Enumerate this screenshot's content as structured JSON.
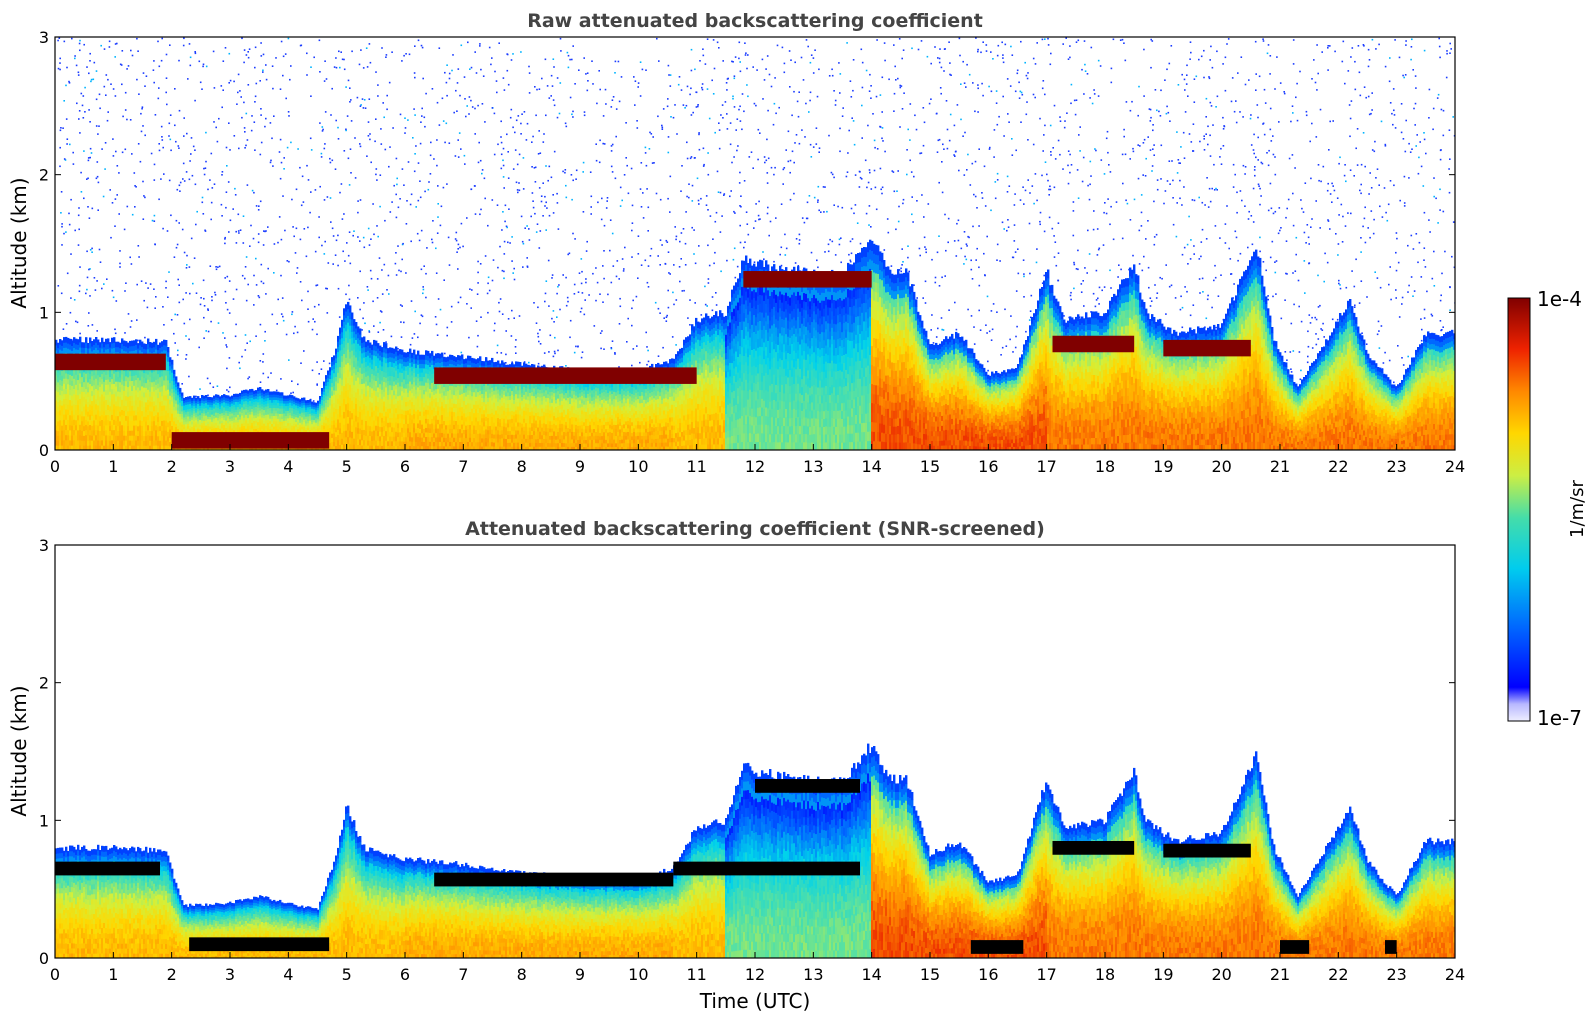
{
  "colors": {
    "text_title": "#444444",
    "noise_blue": "#1b3cff",
    "dark_red": "#800000",
    "black_screened": "#000000"
  },
  "colorbar": {
    "min_label": "1e-7",
    "max_label": "1e-4",
    "label": "1/m/sr",
    "colormap": "jet-like (white at low end, dark red at high end)"
  },
  "chart_data": [
    {
      "type": "heatmap",
      "title": "Raw attenuated backscattering coefficient",
      "xlabel": "",
      "ylabel": "Altitude (km)",
      "xlim": [
        0,
        24
      ],
      "ylim": [
        0,
        3
      ],
      "x_ticks": [
        "0",
        "1",
        "2",
        "3",
        "4",
        "5",
        "6",
        "7",
        "8",
        "9",
        "10",
        "11",
        "12",
        "13",
        "14",
        "15",
        "16",
        "17",
        "18",
        "19",
        "20",
        "21",
        "22",
        "23",
        "24"
      ],
      "y_ticks": [
        "0",
        "1",
        "2",
        "3"
      ],
      "boundary_layer_top_km": [
        [
          0,
          0.8
        ],
        [
          1,
          0.8
        ],
        [
          1.9,
          0.78
        ],
        [
          2.2,
          0.38
        ],
        [
          3,
          0.4
        ],
        [
          3.5,
          0.45
        ],
        [
          4.5,
          0.35
        ],
        [
          4.8,
          0.72
        ],
        [
          5,
          1.1
        ],
        [
          5.3,
          0.8
        ],
        [
          6,
          0.72
        ],
        [
          7,
          0.68
        ],
        [
          8,
          0.62
        ],
        [
          9,
          0.58
        ],
        [
          10,
          0.58
        ],
        [
          10.6,
          0.65
        ],
        [
          11,
          0.95
        ],
        [
          11.5,
          1.0
        ],
        [
          11.8,
          1.4
        ],
        [
          12,
          1.35
        ],
        [
          12.5,
          1.32
        ],
        [
          13,
          1.28
        ],
        [
          13.5,
          1.28
        ],
        [
          14,
          1.55
        ],
        [
          14.3,
          1.3
        ],
        [
          14.6,
          1.3
        ],
        [
          15,
          0.75
        ],
        [
          15.5,
          0.85
        ],
        [
          16,
          0.55
        ],
        [
          16.5,
          0.6
        ],
        [
          17,
          1.3
        ],
        [
          17.3,
          0.95
        ],
        [
          18,
          1.0
        ],
        [
          18.5,
          1.35
        ],
        [
          18.7,
          1.0
        ],
        [
          19.2,
          0.85
        ],
        [
          20,
          0.9
        ],
        [
          20.6,
          1.5
        ],
        [
          20.9,
          0.8
        ],
        [
          21.3,
          0.45
        ],
        [
          21.8,
          0.8
        ],
        [
          22.2,
          1.1
        ],
        [
          22.5,
          0.7
        ],
        [
          23,
          0.45
        ],
        [
          23.5,
          0.85
        ],
        [
          24,
          0.85
        ]
      ],
      "aerosol_layer_km": [
        {
          "start": 0.0,
          "end": 1.9,
          "altitude": 0.65,
          "value": "1e-4"
        },
        {
          "start": 2.0,
          "end": 4.7,
          "altitude": 0.08,
          "value": "1e-4"
        },
        {
          "start": 6.5,
          "end": 11.0,
          "altitude": 0.55,
          "value": "1e-4"
        },
        {
          "start": 11.8,
          "end": 14.0,
          "altitude": 1.25,
          "value": "1e-4"
        },
        {
          "start": 17.1,
          "end": 18.5,
          "altitude": 0.78,
          "value": "1e-4"
        },
        {
          "start": 19.0,
          "end": 20.5,
          "altitude": 0.75,
          "value": "1e-4"
        }
      ]
    },
    {
      "type": "heatmap",
      "title": "Attenuated backscattering coefficient (SNR-screened)",
      "xlabel": "Time (UTC)",
      "ylabel": "Altitude (km)",
      "xlim": [
        0,
        24
      ],
      "ylim": [
        0,
        3
      ],
      "x_ticks": [
        "0",
        "1",
        "2",
        "3",
        "4",
        "5",
        "6",
        "7",
        "8",
        "9",
        "10",
        "11",
        "12",
        "13",
        "14",
        "15",
        "16",
        "17",
        "18",
        "19",
        "20",
        "21",
        "22",
        "23",
        "24"
      ],
      "y_ticks": [
        "0",
        "1",
        "2",
        "3"
      ],
      "screened_saturation_segments": [
        {
          "start": 0.0,
          "end": 1.8,
          "altitude": 0.65
        },
        {
          "start": 2.3,
          "end": 4.7,
          "altitude": 0.1
        },
        {
          "start": 6.5,
          "end": 10.6,
          "altitude": 0.57
        },
        {
          "start": 10.6,
          "end": 13.8,
          "altitude": 0.65
        },
        {
          "start": 12.0,
          "end": 13.8,
          "altitude": 1.25
        },
        {
          "start": 15.7,
          "end": 16.6,
          "altitude": 0.08
        },
        {
          "start": 17.1,
          "end": 18.5,
          "altitude": 0.8
        },
        {
          "start": 19.0,
          "end": 20.5,
          "altitude": 0.78
        },
        {
          "start": 21.0,
          "end": 21.5,
          "altitude": 0.08
        },
        {
          "start": 22.8,
          "end": 23.0,
          "altitude": 0.08
        }
      ]
    }
  ]
}
